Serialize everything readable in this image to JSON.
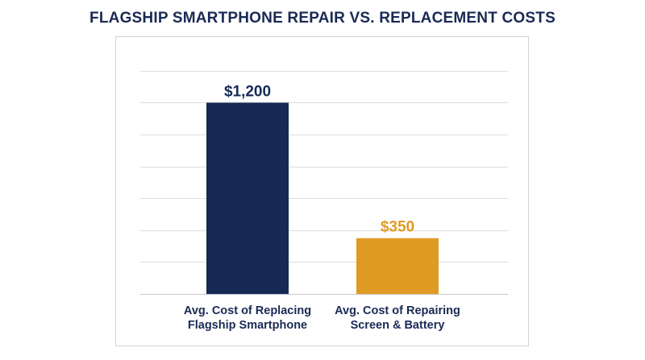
{
  "chart_data": {
    "type": "bar",
    "title": "FLAGSHIP SMARTPHONE REPAIR VS. REPLACEMENT COSTS",
    "categories": [
      [
        "Avg. Cost of Replacing",
        "Flagship Smartphone"
      ],
      [
        "Avg. Cost of Repairing",
        "Screen & Battery"
      ]
    ],
    "values": [
      1200,
      350
    ],
    "value_labels": [
      "$1,200",
      "$350"
    ],
    "colors": [
      "#172a55",
      "#df9a24"
    ],
    "ylim": [
      0,
      1450
    ],
    "grid_step": 200,
    "grid": true,
    "y_axis_visible": false,
    "xlabel": "",
    "ylabel": ""
  }
}
